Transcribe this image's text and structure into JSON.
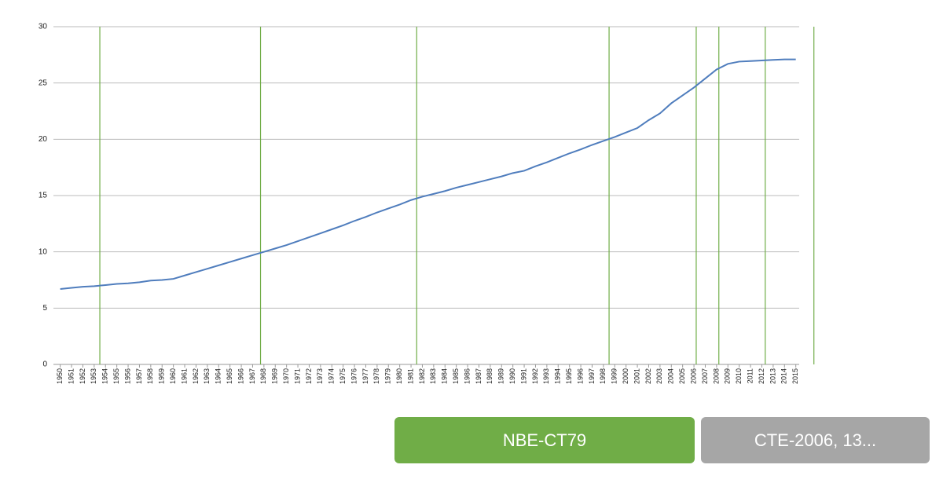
{
  "chart_data": {
    "type": "line",
    "x": [
      1950,
      1951,
      1952,
      1953,
      1954,
      1955,
      1956,
      1957,
      1958,
      1959,
      1960,
      1961,
      1962,
      1963,
      1964,
      1965,
      1966,
      1967,
      1968,
      1969,
      1970,
      1971,
      1972,
      1973,
      1974,
      1975,
      1976,
      1977,
      1978,
      1979,
      1980,
      1981,
      1982,
      1983,
      1984,
      1985,
      1986,
      1987,
      1988,
      1989,
      1990,
      1991,
      1992,
      1993,
      1994,
      1995,
      1996,
      1997,
      1998,
      1999,
      2000,
      2001,
      2002,
      2003,
      2004,
      2005,
      2006,
      2007,
      2008,
      2009,
      2010,
      2011,
      2012,
      2013,
      2014,
      2015
    ],
    "series": [
      {
        "color": "#4f7dbd",
        "values": [
          6.7,
          6.8,
          6.9,
          6.95,
          7.05,
          7.15,
          7.2,
          7.3,
          7.45,
          7.5,
          7.6,
          7.9,
          8.2,
          8.5,
          8.8,
          9.1,
          9.4,
          9.7,
          10.0,
          10.3,
          10.6,
          10.95,
          11.3,
          11.65,
          12.0,
          12.35,
          12.75,
          13.1,
          13.5,
          13.85,
          14.2,
          14.6,
          14.9,
          15.15,
          15.4,
          15.7,
          15.95,
          16.2,
          16.45,
          16.7,
          17.0,
          17.2,
          17.6,
          17.95,
          18.35,
          18.75,
          19.1,
          19.5,
          19.85,
          20.2,
          20.6,
          21.0,
          21.7,
          22.3,
          23.2,
          23.9,
          24.6,
          25.4,
          26.2,
          26.7,
          26.9,
          26.95,
          27.0,
          27.05,
          27.1,
          27.1
        ]
      }
    ],
    "xlim": [
      1949.4,
      2015.3
    ],
    "ylim": [
      0,
      30
    ],
    "yticks": [
      0,
      5,
      10,
      15,
      20,
      25,
      30
    ],
    "grid": true,
    "vlines": [
      1953.5,
      1967.7,
      1981.5,
      1998.5,
      2006.2,
      2008.2,
      2012.3,
      2016.6
    ],
    "vline_color": "#70ad47"
  },
  "tabs": [
    {
      "label": "NBE-CT79",
      "color": "#70ad47"
    },
    {
      "label": "CTE-2006, 13...",
      "color": "#a6a6a6"
    }
  ]
}
